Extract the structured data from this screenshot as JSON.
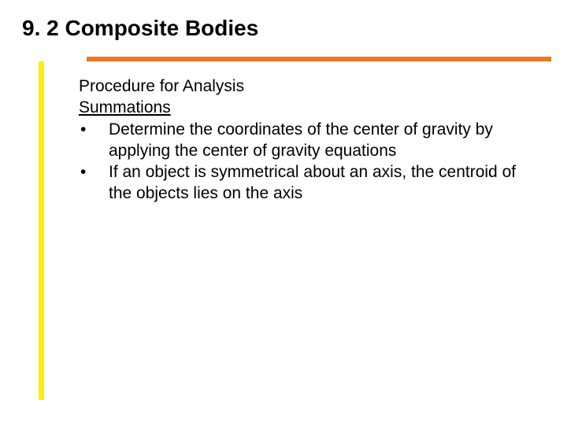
{
  "slide": {
    "title": "9. 2 Composite Bodies",
    "procedure_title": "Procedure for Analysis",
    "subheading": "Summations",
    "bullets": [
      {
        "marker": "•",
        "text": "Determine the coordinates of the center of gravity by applying the center of gravity equations"
      },
      {
        "marker": "•",
        "text": "If an object is symmetrical about an axis, the centroid of the objects lies on the axis"
      }
    ],
    "colors": {
      "orange_rule": "#ee7722",
      "yellow_bar": "#ffee00",
      "background": "#ffffff",
      "text": "#000000"
    },
    "typography": {
      "title_fontsize": 28,
      "body_fontsize": 21,
      "font_family": "Arial"
    }
  }
}
